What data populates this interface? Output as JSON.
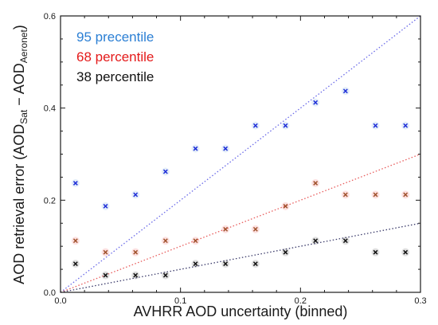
{
  "chart_data": {
    "type": "scatter",
    "title": "",
    "xlabel": "AVHRR AOD uncertainty (binned)",
    "ylabel": {
      "prefix": "AOD retrieval error (AOD",
      "sub1": "Sat",
      "middle": " − AOD",
      "sub2": "Aeronet",
      "suffix": ")"
    },
    "xlim": [
      0.0,
      0.3
    ],
    "ylim": [
      0.0,
      0.6
    ],
    "xticks": [
      0.0,
      0.1,
      0.2,
      0.3
    ],
    "xtick_labels": [
      "0.0",
      "0.1",
      "0.2",
      "0.3"
    ],
    "yticks": [
      0.0,
      0.2,
      0.4,
      0.6
    ],
    "ytick_labels": [
      "0.0",
      "0.2",
      "0.4",
      "0.6"
    ],
    "grid": false,
    "legend_position": "top-left",
    "x": [
      0.0125,
      0.0375,
      0.0625,
      0.0875,
      0.1125,
      0.1375,
      0.1625,
      0.1875,
      0.2125,
      0.2375,
      0.2625,
      0.2875
    ],
    "series": [
      {
        "name": "95 precentile",
        "color": "#2b7fd4",
        "marker_color": "#1f2fd8",
        "values": [
          0.237,
          0.187,
          0.212,
          0.262,
          0.312,
          0.312,
          0.362,
          0.362,
          0.412,
          0.437,
          0.362,
          0.362
        ]
      },
      {
        "name": "68 percentile",
        "color": "#e41a1a",
        "marker_color": "#a0522d",
        "values": [
          0.112,
          0.087,
          0.087,
          0.112,
          0.112,
          0.137,
          0.137,
          0.187,
          0.237,
          0.212,
          0.212,
          0.212
        ]
      },
      {
        "name": "38 percentile",
        "color": "#111111",
        "marker_color": "#111111",
        "values": [
          0.062,
          0.037,
          0.037,
          0.037,
          0.062,
          0.062,
          0.062,
          0.087,
          0.112,
          0.112,
          0.087,
          0.087
        ]
      }
    ],
    "reference_lines": [
      {
        "label": "",
        "color": "#6a6ae8",
        "slope": 2.0
      },
      {
        "label": "",
        "color": "#e85a5a",
        "slope": 1.0
      },
      {
        "label": "",
        "color": "#3a3a6a",
        "slope": 0.5
      }
    ]
  }
}
